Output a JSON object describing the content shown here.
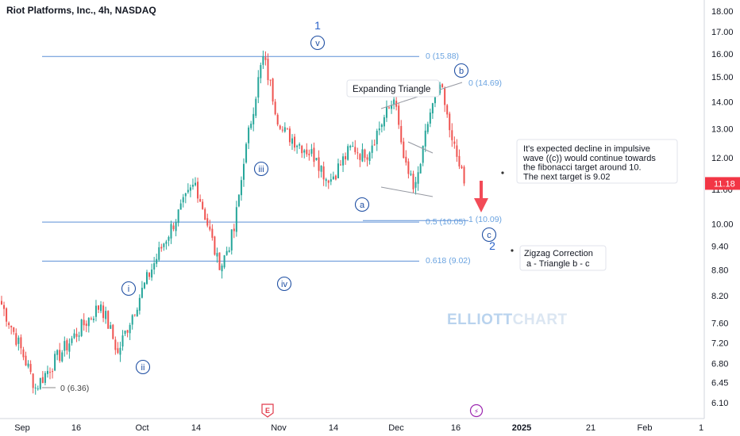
{
  "header": {
    "title": "Riot Platforms, Inc., 4h, NASDAQ"
  },
  "watermark": {
    "text_a": "ELLIOTT",
    "text_b": "CHART"
  },
  "colors": {
    "up": "#26a69a",
    "down": "#ef5350",
    "fib": "#5b8fd6",
    "fib_label": "#6aa3e0",
    "wave": "#1f4fa3",
    "last_price_bg": "#f23645",
    "arrow": "#f24b57"
  },
  "chart_data": {
    "type": "candlestick",
    "title": "Riot Platforms, Inc., 4h, NASDAQ",
    "ylim": [
      5.9,
      18.2
    ],
    "y_scale": "log",
    "y_ticks": [
      "18.00",
      "17.00",
      "16.00",
      "15.00",
      "14.00",
      "13.00",
      "12.00",
      "11.00",
      "10.00",
      "9.40",
      "8.80",
      "8.20",
      "7.60",
      "7.20",
      "6.80",
      "6.45",
      "6.10"
    ],
    "y_tick_values": [
      18.0,
      17.0,
      16.0,
      15.0,
      14.0,
      13.0,
      12.0,
      11.0,
      10.0,
      9.4,
      8.8,
      8.2,
      7.6,
      7.2,
      6.8,
      6.45,
      6.1
    ],
    "x_ticks": [
      "Sep",
      "16",
      "Oct",
      "14",
      "Nov",
      "14",
      "Dec",
      "16",
      "2025",
      "21",
      "Feb",
      "1"
    ],
    "x_tick_bold": [
      "2025"
    ],
    "last_price": {
      "value": 11.18,
      "label": "11.18"
    },
    "anchors": [
      {
        "i": 0,
        "p": 8.0
      },
      {
        "i": 14,
        "p": 6.36
      },
      {
        "i": 41,
        "p": 8.0
      },
      {
        "i": 48,
        "p": 7.0
      },
      {
        "i": 80,
        "p": 11.2
      },
      {
        "i": 90,
        "p": 8.8
      },
      {
        "i": 96,
        "p": 9.8
      },
      {
        "i": 100,
        "p": 11.8
      },
      {
        "i": 108,
        "p": 15.88
      },
      {
        "i": 115,
        "p": 13.0
      },
      {
        "i": 130,
        "p": 12.0
      },
      {
        "i": 135,
        "p": 11.2
      },
      {
        "i": 145,
        "p": 12.4
      },
      {
        "i": 150,
        "p": 12.0
      },
      {
        "i": 162,
        "p": 14.1
      },
      {
        "i": 166,
        "p": 12.0
      },
      {
        "i": 170,
        "p": 11.0
      },
      {
        "i": 173,
        "p": 11.8
      },
      {
        "i": 177,
        "p": 13.6
      },
      {
        "i": 181,
        "p": 14.69
      },
      {
        "i": 186,
        "p": 12.6
      },
      {
        "i": 191,
        "p": 11.18
      }
    ],
    "fib_levels": [
      {
        "label": "0 (15.88)",
        "value": 15.88
      },
      {
        "label": "0 (14.69)",
        "value": 14.69
      },
      {
        "label": "0.5 (10.05)",
        "value": 10.05
      },
      {
        "label": "1 (10.09)",
        "value": 10.09
      },
      {
        "label": "0.618 (9.02)",
        "value": 9.02
      },
      {
        "label": "0 (6.36)",
        "value": 6.36
      }
    ],
    "waves": [
      {
        "label": "1",
        "style": "plain"
      },
      {
        "label": "v",
        "style": "circle"
      },
      {
        "label": "iii",
        "style": "circle"
      },
      {
        "label": "iv",
        "style": "circle"
      },
      {
        "label": "i",
        "style": "circle"
      },
      {
        "label": "ii",
        "style": "circle"
      },
      {
        "label": "a",
        "style": "circle"
      },
      {
        "label": "b",
        "style": "circle"
      },
      {
        "label": "c",
        "style": "circle"
      },
      {
        "label": "2",
        "style": "plain"
      }
    ],
    "annotations": {
      "triangle": "Expanding Triangle",
      "note_lines": [
        "It's expected decline in impulsive",
        "wave ((c)) would continue towards",
        "the fibonacci target around 10.",
        "The next target is 9.02"
      ],
      "zigzag_lines": [
        "Zigzag Correction",
        "a - Triangle b - c"
      ]
    },
    "events": [
      {
        "label": "E"
      },
      {
        "label": "⚡"
      }
    ]
  }
}
